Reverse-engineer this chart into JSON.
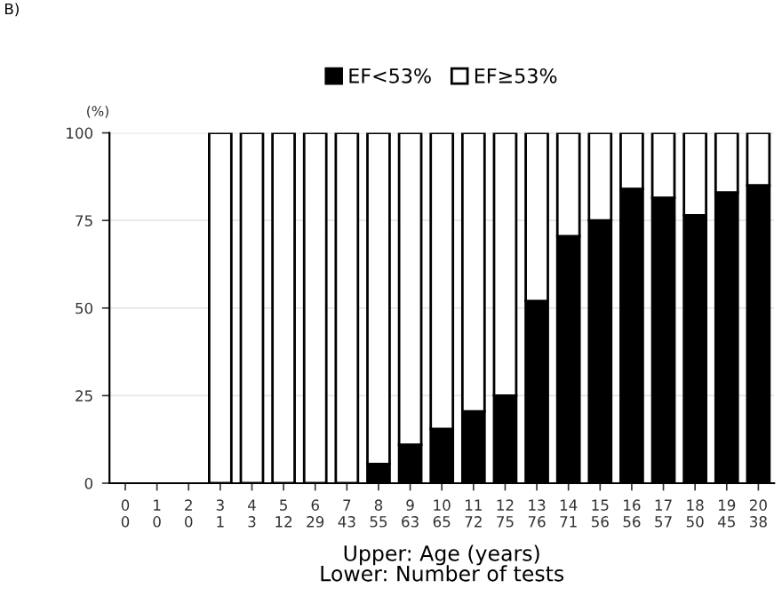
{
  "chart_data": {
    "type": "bar",
    "stacked": true,
    "categories": [
      "0\n0",
      "1\n0",
      "2\n0",
      "3\n1",
      "4\n3",
      "5\n12",
      "6\n29",
      "7\n43",
      "8\n55",
      "9\n63",
      "10\n65",
      "11\n72",
      "12\n75",
      "13\n76",
      "14\n71",
      "15\n56",
      "16\n56",
      "17\n57",
      "18\n50",
      "19\n45",
      "20\n38"
    ],
    "series": [
      {
        "name": "EF<53%",
        "color": "#000000",
        "values": [
          null,
          null,
          null,
          0,
          0,
          0,
          0,
          0,
          5.5,
          11,
          15.5,
          20.5,
          25,
          52,
          70.5,
          75,
          84,
          81.5,
          76.5,
          83,
          85
        ]
      },
      {
        "name": "EF≥53%",
        "color": "#ffffff",
        "values": [
          null,
          null,
          null,
          100,
          100,
          100,
          100,
          100,
          94.5,
          89,
          84.5,
          79.5,
          75,
          48,
          29.5,
          25,
          16,
          18.5,
          23.5,
          17,
          15
        ]
      }
    ],
    "ylim": [
      0,
      100
    ],
    "yticks": [
      0,
      25,
      50,
      75,
      100
    ],
    "grid": "y",
    "legend": "top",
    "ylabel": "(%)",
    "xlabel": "Upper: Age (years)\nLower: Number of tests",
    "annotations": [
      "B)"
    ]
  }
}
